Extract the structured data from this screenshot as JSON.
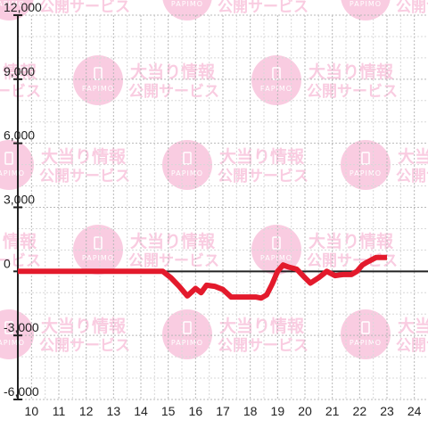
{
  "chart_data": {
    "type": "line",
    "title": "",
    "xlabel": "",
    "ylabel": "",
    "xlim": [
      9.5,
      24.5
    ],
    "ylim": [
      -6000,
      12000
    ],
    "x_ticks": [
      10,
      11,
      12,
      13,
      14,
      15,
      16,
      17,
      18,
      19,
      20,
      21,
      22,
      23,
      24
    ],
    "y_ticks": [
      12000,
      9000,
      6000,
      3000,
      0,
      -3000,
      -6000
    ],
    "y_tick_labels": [
      "12,000",
      "9,000",
      "6,000",
      "3,000",
      "0",
      "-3,000",
      "-6,000"
    ],
    "grid": true,
    "legend": "none",
    "series": [
      {
        "x": [
          9.5,
          14.8,
          15.1,
          15.4,
          15.7,
          16.0,
          16.2,
          16.4,
          16.7,
          17.0,
          17.3,
          17.6,
          17.9,
          18.2,
          18.4,
          18.6,
          18.8,
          19.0,
          19.2,
          19.4,
          19.7,
          20.0,
          20.2,
          20.5,
          20.8,
          21.1,
          21.4,
          21.7,
          21.9,
          22.1,
          22.3,
          22.6,
          22.9,
          23.0
        ],
        "y": [
          0,
          0,
          -300,
          -700,
          -1150,
          -800,
          -1000,
          -650,
          -700,
          -850,
          -1200,
          -1200,
          -1200,
          -1200,
          -1250,
          -1100,
          -600,
          0,
          300,
          200,
          100,
          -300,
          -550,
          -300,
          0,
          -200,
          -150,
          -150,
          0,
          300,
          450,
          650,
          650,
          650
        ]
      }
    ],
    "colors": {
      "line": "#e31a2c",
      "zero_line": "#222222",
      "grid": "#b8b8b8",
      "watermark": "#f9c4dc"
    }
  },
  "watermark": {
    "line1": "大当り情報",
    "line2": "公開サービス",
    "brand": "PAPIMO"
  }
}
